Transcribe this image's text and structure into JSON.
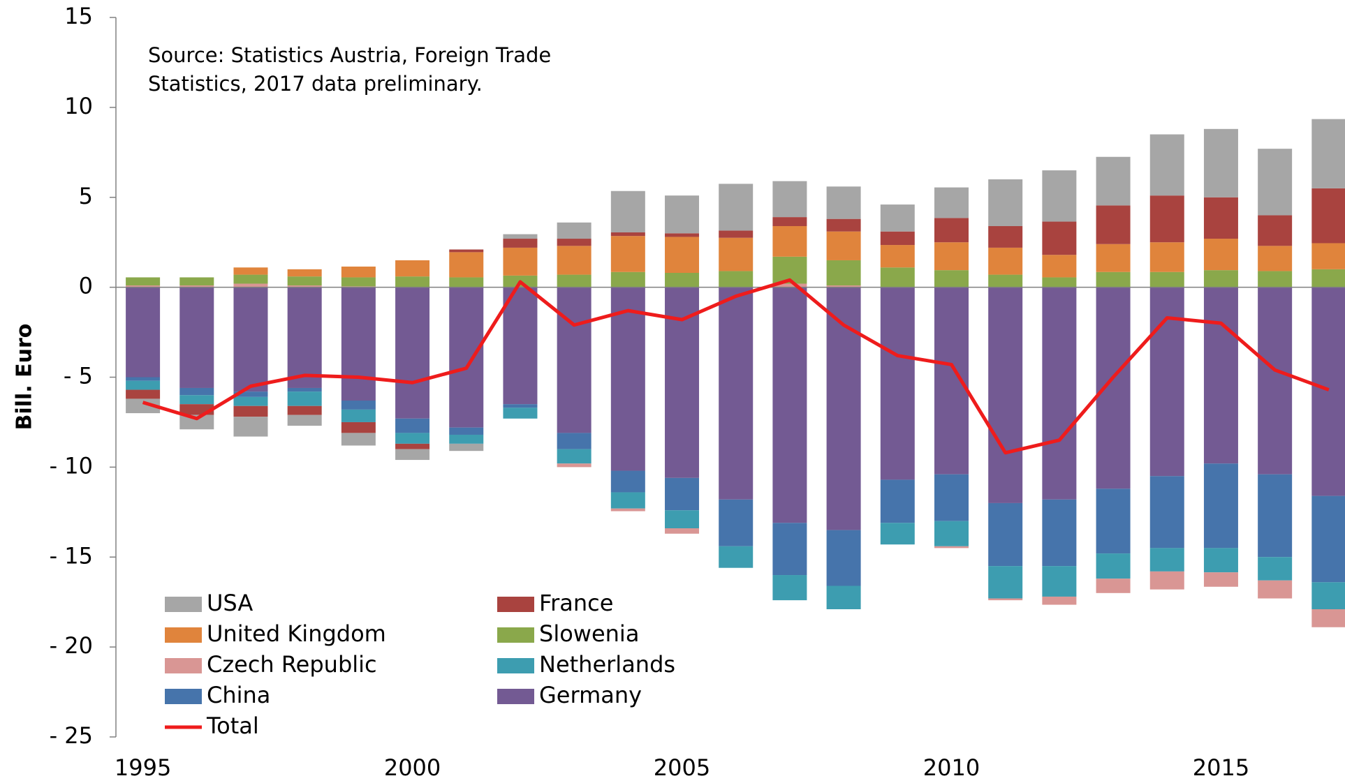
{
  "chart_data": {
    "type": "bar",
    "stacked": true,
    "ylabel": "Bill. Euro",
    "annotation": [
      "Source: Statistics Austria, Foreign Trade",
      "Statistics, 2017 data preliminary."
    ],
    "x": [
      1995,
      1996,
      1997,
      1998,
      1999,
      2000,
      2001,
      2002,
      2003,
      2004,
      2005,
      2006,
      2007,
      2008,
      2009,
      2010,
      2011,
      2012,
      2013,
      2014,
      2015,
      2016,
      2017
    ],
    "xlim": [
      1994.5,
      2017.3
    ],
    "xticks": [
      1995,
      2000,
      2005,
      2010,
      2015
    ],
    "ylim": [
      -25,
      15
    ],
    "yticks": [
      {
        "value": -25,
        "label": "- 25"
      },
      {
        "value": -20,
        "label": "- 20"
      },
      {
        "value": -15,
        "label": "- 15"
      },
      {
        "value": -10,
        "label": "- 10"
      },
      {
        "value": -5,
        "label": "- 5"
      },
      0,
      5,
      10,
      15
    ],
    "legend": "lower left",
    "series": [
      {
        "name": "USA",
        "color": "#a6a6a6",
        "values": [
          -0.8,
          -0.8,
          -1.1,
          -0.6,
          -0.7,
          -0.6,
          -0.4,
          0.25,
          0.9,
          2.3,
          2.1,
          2.6,
          2.0,
          1.8,
          1.5,
          1.7,
          2.6,
          2.85,
          2.7,
          3.4,
          3.8,
          3.7,
          3.85
        ]
      },
      {
        "name": "France",
        "color": "#a9433f",
        "values": [
          -0.5,
          -0.6,
          -0.6,
          -0.5,
          -0.6,
          -0.3,
          0.15,
          0.5,
          0.4,
          0.2,
          0.2,
          0.4,
          0.5,
          0.7,
          0.75,
          1.35,
          1.2,
          1.85,
          2.15,
          2.6,
          2.3,
          1.7,
          3.05
        ]
      },
      {
        "name": "United Kingdom",
        "color": "#e0843c",
        "values": [
          0,
          0,
          0.4,
          0.4,
          0.6,
          0.9,
          1.4,
          1.55,
          1.6,
          2.0,
          2.0,
          1.85,
          1.7,
          1.6,
          1.25,
          1.55,
          1.5,
          1.25,
          1.55,
          1.65,
          1.75,
          1.4,
          1.45
        ]
      },
      {
        "name": "Slowenia",
        "color": "#8aa84b",
        "values": [
          0.45,
          0.45,
          0.5,
          0.5,
          0.5,
          0.6,
          0.55,
          0.65,
          0.7,
          0.85,
          0.8,
          0.9,
          1.5,
          1.4,
          1.1,
          0.95,
          0.7,
          0.55,
          0.85,
          0.85,
          0.95,
          0.9,
          1.0
        ]
      },
      {
        "name": "Czech Republic",
        "color": "#d99694",
        "values": [
          0.1,
          0.1,
          0.2,
          0.1,
          0.05,
          0,
          0,
          0,
          -0.2,
          -0.15,
          -0.3,
          0,
          0.2,
          0.1,
          0,
          -0.1,
          -0.1,
          -0.45,
          -0.8,
          -1.0,
          -0.8,
          -1.0,
          -1.0
        ]
      },
      {
        "name": "Netherlands",
        "color": "#3d9db0",
        "values": [
          -0.5,
          -0.5,
          -0.5,
          -0.8,
          -0.7,
          -0.6,
          -0.5,
          -0.6,
          -0.8,
          -0.9,
          -1.0,
          -1.2,
          -1.4,
          -1.3,
          -1.2,
          -1.4,
          -1.8,
          -1.7,
          -1.4,
          -1.3,
          -1.35,
          -1.3,
          -1.5
        ]
      },
      {
        "name": "China",
        "color": "#4674ab",
        "values": [
          -0.2,
          -0.4,
          -0.3,
          -0.2,
          -0.5,
          -0.8,
          -0.4,
          -0.2,
          -0.9,
          -1.2,
          -1.8,
          -2.6,
          -2.9,
          -3.1,
          -2.4,
          -2.6,
          -3.5,
          -3.7,
          -3.6,
          -4.0,
          -4.7,
          -4.6,
          -4.8
        ]
      },
      {
        "name": "Germany",
        "color": "#735a93",
        "values": [
          -5.0,
          -5.6,
          -5.8,
          -5.6,
          -6.3,
          -7.3,
          -7.8,
          -6.5,
          -8.1,
          -10.2,
          -10.6,
          -11.8,
          -13.1,
          -13.5,
          -10.7,
          -10.4,
          -12.0,
          -11.8,
          -11.2,
          -10.5,
          -9.8,
          -10.4,
          -11.6
        ]
      },
      {
        "name": "Total",
        "color": "#ee1c1c",
        "kind": "line",
        "values": [
          -6.4,
          -7.3,
          -5.5,
          -4.9,
          -5.0,
          -5.3,
          -4.5,
          0.3,
          -2.1,
          -1.3,
          -1.8,
          -0.5,
          0.4,
          -2.1,
          -3.8,
          -4.3,
          -9.2,
          -8.5,
          -5.0,
          -1.7,
          -2.0,
          -4.6,
          -5.7
        ]
      }
    ]
  }
}
